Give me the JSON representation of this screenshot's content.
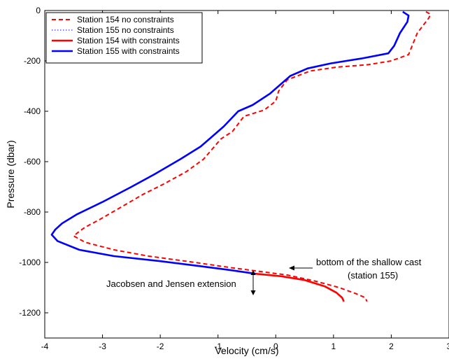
{
  "chart_data": {
    "type": "line",
    "title": "",
    "xlabel": "Velocity (cm/s)",
    "ylabel": "Pressure (dbar)",
    "xlim": [
      -4,
      3
    ],
    "ylim": [
      -1300,
      0
    ],
    "x_ticks": [
      -4,
      -3,
      -2,
      -1,
      0,
      1,
      2,
      3
    ],
    "y_ticks": [
      0,
      -200,
      -400,
      -600,
      -800,
      -1000,
      -1200
    ],
    "grid": false,
    "legend_position": "top-left",
    "series": [
      {
        "name": "Station 154 no constraints",
        "color": "#ff0000",
        "style": "dashed",
        "points": [
          [
            2.6,
            -5
          ],
          [
            2.68,
            -15
          ],
          [
            2.65,
            -30
          ],
          [
            2.55,
            -60
          ],
          [
            2.45,
            -90
          ],
          [
            2.38,
            -130
          ],
          [
            2.3,
            -175
          ],
          [
            2.0,
            -200
          ],
          [
            1.6,
            -215
          ],
          [
            1.05,
            -225
          ],
          [
            0.6,
            -240
          ],
          [
            0.2,
            -275
          ],
          [
            0.05,
            -320
          ],
          [
            0.0,
            -360
          ],
          [
            -0.2,
            -395
          ],
          [
            -0.55,
            -420
          ],
          [
            -0.75,
            -480
          ],
          [
            -0.95,
            -510
          ],
          [
            -1.1,
            -550
          ],
          [
            -1.25,
            -590
          ],
          [
            -1.55,
            -640
          ],
          [
            -1.95,
            -690
          ],
          [
            -2.3,
            -730
          ],
          [
            -2.75,
            -790
          ],
          [
            -3.05,
            -830
          ],
          [
            -3.3,
            -860
          ],
          [
            -3.42,
            -880
          ],
          [
            -3.5,
            -895
          ],
          [
            -3.3,
            -920
          ],
          [
            -2.8,
            -950
          ],
          [
            -2.2,
            -975
          ],
          [
            -1.4,
            -1000
          ],
          [
            -0.8,
            -1020
          ],
          [
            -0.3,
            -1035
          ],
          [
            0.2,
            -1050
          ],
          [
            0.7,
            -1075
          ],
          [
            1.1,
            -1100
          ],
          [
            1.4,
            -1125
          ],
          [
            1.55,
            -1140
          ],
          [
            1.58,
            -1155
          ]
        ]
      },
      {
        "name": "Station 155 no constraints",
        "color": "#3333ff",
        "style": "dotted",
        "points": [
          [
            2.2,
            -5
          ],
          [
            2.3,
            -20
          ],
          [
            2.28,
            -45
          ],
          [
            2.15,
            -90
          ],
          [
            2.05,
            -140
          ],
          [
            1.95,
            -170
          ],
          [
            1.5,
            -190
          ],
          [
            0.95,
            -210
          ],
          [
            0.55,
            -230
          ],
          [
            0.25,
            -260
          ],
          [
            0.05,
            -300
          ],
          [
            -0.1,
            -330
          ],
          [
            -0.4,
            -375
          ],
          [
            -0.65,
            -400
          ],
          [
            -0.9,
            -460
          ],
          [
            -1.1,
            -500
          ],
          [
            -1.3,
            -540
          ],
          [
            -1.65,
            -590
          ],
          [
            -2.1,
            -650
          ],
          [
            -2.5,
            -700
          ],
          [
            -3.0,
            -760
          ],
          [
            -3.45,
            -810
          ],
          [
            -3.7,
            -845
          ],
          [
            -3.82,
            -870
          ],
          [
            -3.88,
            -890
          ],
          [
            -3.78,
            -915
          ],
          [
            -3.4,
            -950
          ],
          [
            -2.8,
            -975
          ],
          [
            -2.0,
            -995
          ],
          [
            -1.3,
            -1015
          ],
          [
            -0.8,
            -1030
          ],
          [
            -0.35,
            -1045
          ]
        ]
      },
      {
        "name": "Station 154 with constraints",
        "color": "#ff0000",
        "style": "solid",
        "points": [
          [
            -0.35,
            -1045
          ],
          [
            0.1,
            -1055
          ],
          [
            0.5,
            -1070
          ],
          [
            0.85,
            -1095
          ],
          [
            1.05,
            -1120
          ],
          [
            1.15,
            -1140
          ],
          [
            1.18,
            -1155
          ]
        ]
      },
      {
        "name": "Station 155 with constraints",
        "color": "#0000ff",
        "style": "solid",
        "points": [
          [
            2.2,
            -5
          ],
          [
            2.3,
            -20
          ],
          [
            2.28,
            -45
          ],
          [
            2.15,
            -90
          ],
          [
            2.05,
            -140
          ],
          [
            1.95,
            -170
          ],
          [
            1.5,
            -190
          ],
          [
            0.95,
            -210
          ],
          [
            0.55,
            -230
          ],
          [
            0.25,
            -260
          ],
          [
            0.05,
            -300
          ],
          [
            -0.1,
            -330
          ],
          [
            -0.4,
            -375
          ],
          [
            -0.65,
            -400
          ],
          [
            -0.9,
            -460
          ],
          [
            -1.1,
            -500
          ],
          [
            -1.3,
            -540
          ],
          [
            -1.65,
            -590
          ],
          [
            -2.1,
            -650
          ],
          [
            -2.5,
            -700
          ],
          [
            -3.0,
            -760
          ],
          [
            -3.45,
            -810
          ],
          [
            -3.7,
            -845
          ],
          [
            -3.82,
            -870
          ],
          [
            -3.88,
            -890
          ],
          [
            -3.78,
            -915
          ],
          [
            -3.4,
            -950
          ],
          [
            -2.8,
            -975
          ],
          [
            -2.0,
            -995
          ],
          [
            -1.3,
            -1015
          ],
          [
            -0.8,
            -1030
          ],
          [
            -0.35,
            -1045
          ]
        ]
      }
    ],
    "annotations": [
      {
        "text": "bottom of the shallow cast",
        "arrow_to": [
          0.2,
          -1050
        ]
      },
      {
        "text": "(station 155)"
      },
      {
        "text": "Jacobsen and Jensen extension",
        "span": [
          -0.35,
          -1070,
          -1170
        ]
      }
    ]
  }
}
